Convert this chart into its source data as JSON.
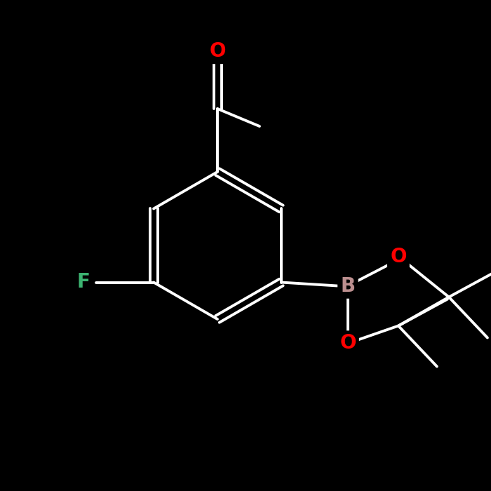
{
  "background_color": "#000000",
  "bond_color": "#ffffff",
  "atom_colors": {
    "O": "#ff0000",
    "F": "#3cb371",
    "B": "#bc8f8f",
    "C": "#ffffff",
    "H": "#ffffff"
  },
  "font_size_atoms": 20,
  "line_width": 2.8,
  "figsize": [
    7.0,
    7.0
  ],
  "dpi": 100
}
